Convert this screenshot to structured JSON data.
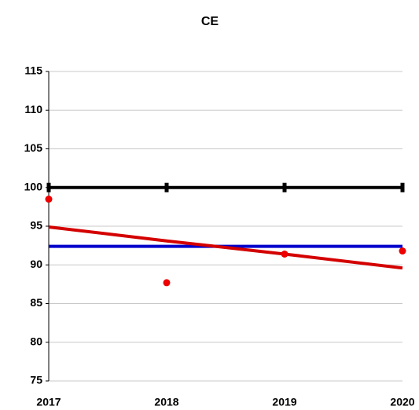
{
  "chart_data": {
    "type": "line",
    "title": "CE",
    "x": [
      2017,
      2018,
      2019,
      2020
    ],
    "xlim": [
      2017,
      2020
    ],
    "xticks": [
      2017,
      2018,
      2019,
      2020
    ],
    "ylim": [
      75,
      115
    ],
    "yticks": [
      75,
      80,
      85,
      90,
      95,
      100,
      105,
      110,
      115
    ],
    "grid": true,
    "series": [
      {
        "color": "#000000",
        "values": [
          100,
          100,
          100,
          100
        ],
        "line": true,
        "marker": "tick"
      },
      {
        "color": "#0000cc",
        "values": [
          92.4,
          92.4,
          92.4,
          92.4
        ],
        "line": true,
        "marker": "none"
      },
      {
        "color": "#d40000",
        "values": [
          94.9,
          93.1,
          91.4,
          89.6
        ],
        "line": true,
        "marker": "none"
      },
      {
        "color": "#ee0000",
        "values": [
          98.5,
          87.7,
          91.4,
          91.8
        ],
        "line": false,
        "marker": "dot"
      }
    ]
  }
}
